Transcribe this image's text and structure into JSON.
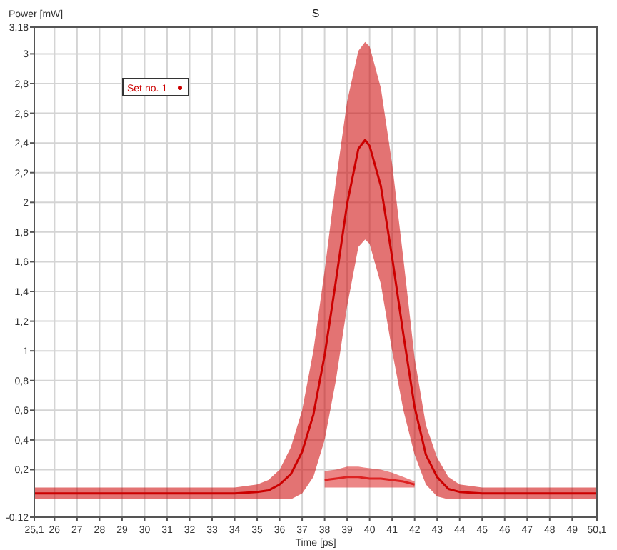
{
  "chart_data": {
    "type": "line",
    "title": "S",
    "xlabel": "Time [ps]",
    "ylabel": "Power [mW]",
    "x": [
      25.1,
      26,
      27,
      28,
      29,
      30,
      31,
      32,
      33,
      34,
      35,
      35.5,
      36,
      36.5,
      37,
      37.5,
      38,
      38.5,
      39,
      39.5,
      39.8,
      40,
      40.5,
      41,
      41.5,
      42,
      42.5,
      43,
      43.5,
      44,
      45,
      46,
      47,
      48,
      49,
      50.1
    ],
    "series": [
      {
        "name": "Set no. 1",
        "color": "#cc0000",
        "values": [
          0.04,
          0.04,
          0.04,
          0.04,
          0.04,
          0.04,
          0.04,
          0.04,
          0.04,
          0.04,
          0.05,
          0.06,
          0.1,
          0.17,
          0.32,
          0.57,
          0.97,
          1.47,
          1.99,
          2.36,
          2.42,
          2.38,
          2.11,
          1.63,
          1.11,
          0.62,
          0.3,
          0.15,
          0.07,
          0.05,
          0.04,
          0.04,
          0.04,
          0.04,
          0.04,
          0.04
        ],
        "lower": [
          0,
          0,
          0,
          0,
          0,
          0,
          0,
          0,
          0,
          0,
          0,
          0,
          0,
          0,
          0.04,
          0.15,
          0.4,
          0.8,
          1.3,
          1.7,
          1.75,
          1.72,
          1.45,
          1,
          0.6,
          0.3,
          0.1,
          0.02,
          0,
          0,
          0,
          0,
          0,
          0,
          0,
          0
        ],
        "upper": [
          0.08,
          0.08,
          0.08,
          0.08,
          0.08,
          0.08,
          0.08,
          0.08,
          0.08,
          0.08,
          0.1,
          0.13,
          0.2,
          0.35,
          0.6,
          1,
          1.54,
          2.14,
          2.68,
          3.02,
          3.08,
          3.05,
          2.77,
          2.26,
          1.62,
          0.95,
          0.5,
          0.28,
          0.15,
          0.1,
          0.08,
          0.08,
          0.08,
          0.08,
          0.08,
          0.08
        ]
      },
      {
        "color": "#dd2222",
        "x": [
          38,
          38.5,
          39,
          39.5,
          40,
          40.5,
          41,
          41.5,
          42
        ],
        "values": [
          0.13,
          0.14,
          0.15,
          0.15,
          0.14,
          0.14,
          0.13,
          0.12,
          0.1
        ],
        "lower": [
          0.08,
          0.08,
          0.08,
          0.08,
          0.08,
          0.08,
          0.08,
          0.08,
          0.08
        ],
        "upper": [
          0.19,
          0.2,
          0.22,
          0.22,
          0.21,
          0.2,
          0.18,
          0.15,
          0.12
        ]
      }
    ],
    "xlim": [
      25.1,
      50.1
    ],
    "xticks": [
      {
        "value": 25.1,
        "label": "25,1"
      },
      26,
      27,
      28,
      29,
      30,
      31,
      32,
      33,
      34,
      35,
      36,
      37,
      38,
      39,
      40,
      41,
      42,
      43,
      44,
      45,
      46,
      47,
      48,
      49,
      {
        "value": 50.1,
        "label": "50,1"
      }
    ],
    "ylim": [
      -0.12,
      3.18
    ],
    "yticks": [
      {
        "value": -0.12,
        "label": "-0.12"
      },
      {
        "value": 0.2,
        "label": "0,2"
      },
      {
        "value": 0.4,
        "label": "0,4"
      },
      {
        "value": 0.6,
        "label": "0,6"
      },
      {
        "value": 0.8,
        "label": "0,8"
      },
      1,
      {
        "value": 1.2,
        "label": "1,2"
      },
      {
        "value": 1.4,
        "label": "1,4"
      },
      {
        "value": 1.6,
        "label": "1,6"
      },
      {
        "value": 1.8,
        "label": "1,8"
      },
      2,
      {
        "value": 2.2,
        "label": "2,2"
      },
      {
        "value": 2.4,
        "label": "2,4"
      },
      {
        "value": 2.6,
        "label": "2,6"
      },
      {
        "value": 2.8,
        "label": "2,8"
      },
      3,
      {
        "value": 3.18,
        "label": "3,18"
      }
    ],
    "grid": true,
    "legend": "top left"
  }
}
